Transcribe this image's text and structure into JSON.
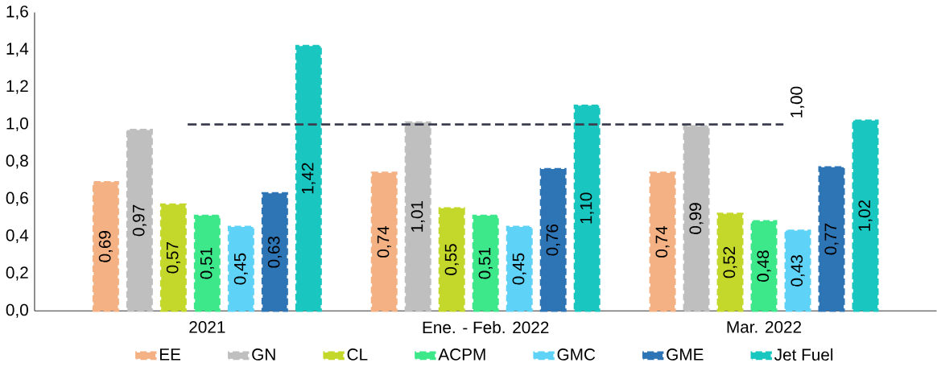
{
  "chart_data": {
    "type": "bar",
    "categories": [
      "2021",
      "Ene. - Feb. 2022",
      "Mar. 2022"
    ],
    "series": [
      {
        "name": "EE",
        "color": "#f4b183",
        "values": [
          0.69,
          0.74,
          0.74
        ],
        "value_labels": [
          "0,69",
          "0,74",
          "0,74"
        ]
      },
      {
        "name": "GN",
        "color": "#bfbfbf",
        "values": [
          0.97,
          1.01,
          0.99
        ],
        "value_labels": [
          "0,97",
          "1,01",
          "0,99"
        ]
      },
      {
        "name": "CL",
        "color": "#c3d82a",
        "values": [
          0.57,
          0.55,
          0.52
        ],
        "value_labels": [
          "0,57",
          "0,55",
          "0,52"
        ]
      },
      {
        "name": "ACPM",
        "color": "#3de88a",
        "values": [
          0.51,
          0.51,
          0.48
        ],
        "value_labels": [
          "0,51",
          "0,51",
          "0,48"
        ]
      },
      {
        "name": "GMC",
        "color": "#5fd3f7",
        "values": [
          0.45,
          0.45,
          0.43
        ],
        "value_labels": [
          "0,45",
          "0,45",
          "0,43"
        ]
      },
      {
        "name": "GME",
        "color": "#2e75b6",
        "values": [
          0.63,
          0.76,
          0.77
        ],
        "value_labels": [
          "0,63",
          "0,76",
          "0,77"
        ]
      },
      {
        "name": "Jet Fuel",
        "color": "#19c7c0",
        "values": [
          1.42,
          1.1,
          1.02
        ],
        "value_labels": [
          "1,42",
          "1,10",
          "1,02"
        ]
      }
    ],
    "ylim": [
      0,
      1.6
    ],
    "yticks": [
      {
        "value": 0,
        "label": "0,0"
      },
      {
        "value": 0.2,
        "label": "0,2"
      },
      {
        "value": 0.4,
        "label": "0,4"
      },
      {
        "value": 0.6,
        "label": "0,6"
      },
      {
        "value": 0.8,
        "label": "0,8"
      },
      {
        "value": 1.0,
        "label": "1,0"
      },
      {
        "value": 1.2,
        "label": "1,2"
      },
      {
        "value": 1.4,
        "label": "1,4"
      },
      {
        "value": 1.6,
        "label": "1,6"
      }
    ],
    "ref_lines": [
      {
        "axis": "y",
        "value": 1.0,
        "label": "1,00",
        "color": "#3b3f4f",
        "line_style": "dashed"
      }
    ],
    "line_style": "dashed",
    "legend": "bottom",
    "grid": false
  }
}
